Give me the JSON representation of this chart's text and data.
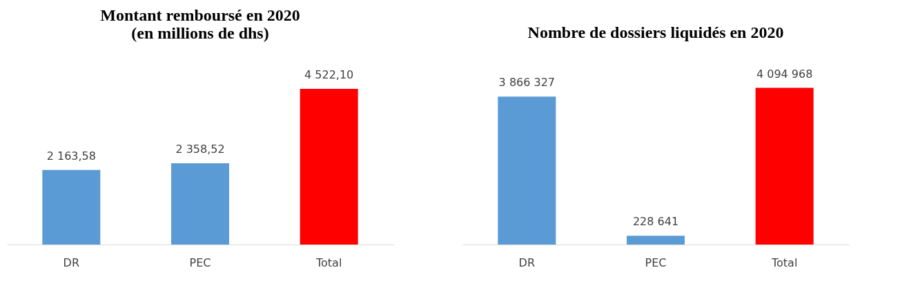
{
  "chart_data": [
    {
      "type": "bar",
      "title": [
        "Montant remboursé en 2020",
        "(en millions de dhs)"
      ],
      "categories": [
        "DR",
        "PEC",
        "Total"
      ],
      "values": [
        2163.58,
        2358.52,
        4522.1
      ],
      "colors": [
        "#5b9bd5",
        "#5b9bd5",
        "#ff0000"
      ],
      "value_labels": [
        "2 163,58",
        "2 358,52",
        "4 522,10"
      ],
      "grid": false
    },
    {
      "type": "bar",
      "title": [
        "Nombre de dossiers liquidés en 2020"
      ],
      "categories": [
        "DR",
        "PEC",
        "Total"
      ],
      "values": [
        3866327,
        228641,
        4094968
      ],
      "colors": [
        "#5b9bd5",
        "#5b9bd5",
        "#ff0000"
      ],
      "value_labels": [
        "3 866 327",
        "228 641",
        "4 094 968"
      ],
      "grid": false
    }
  ]
}
